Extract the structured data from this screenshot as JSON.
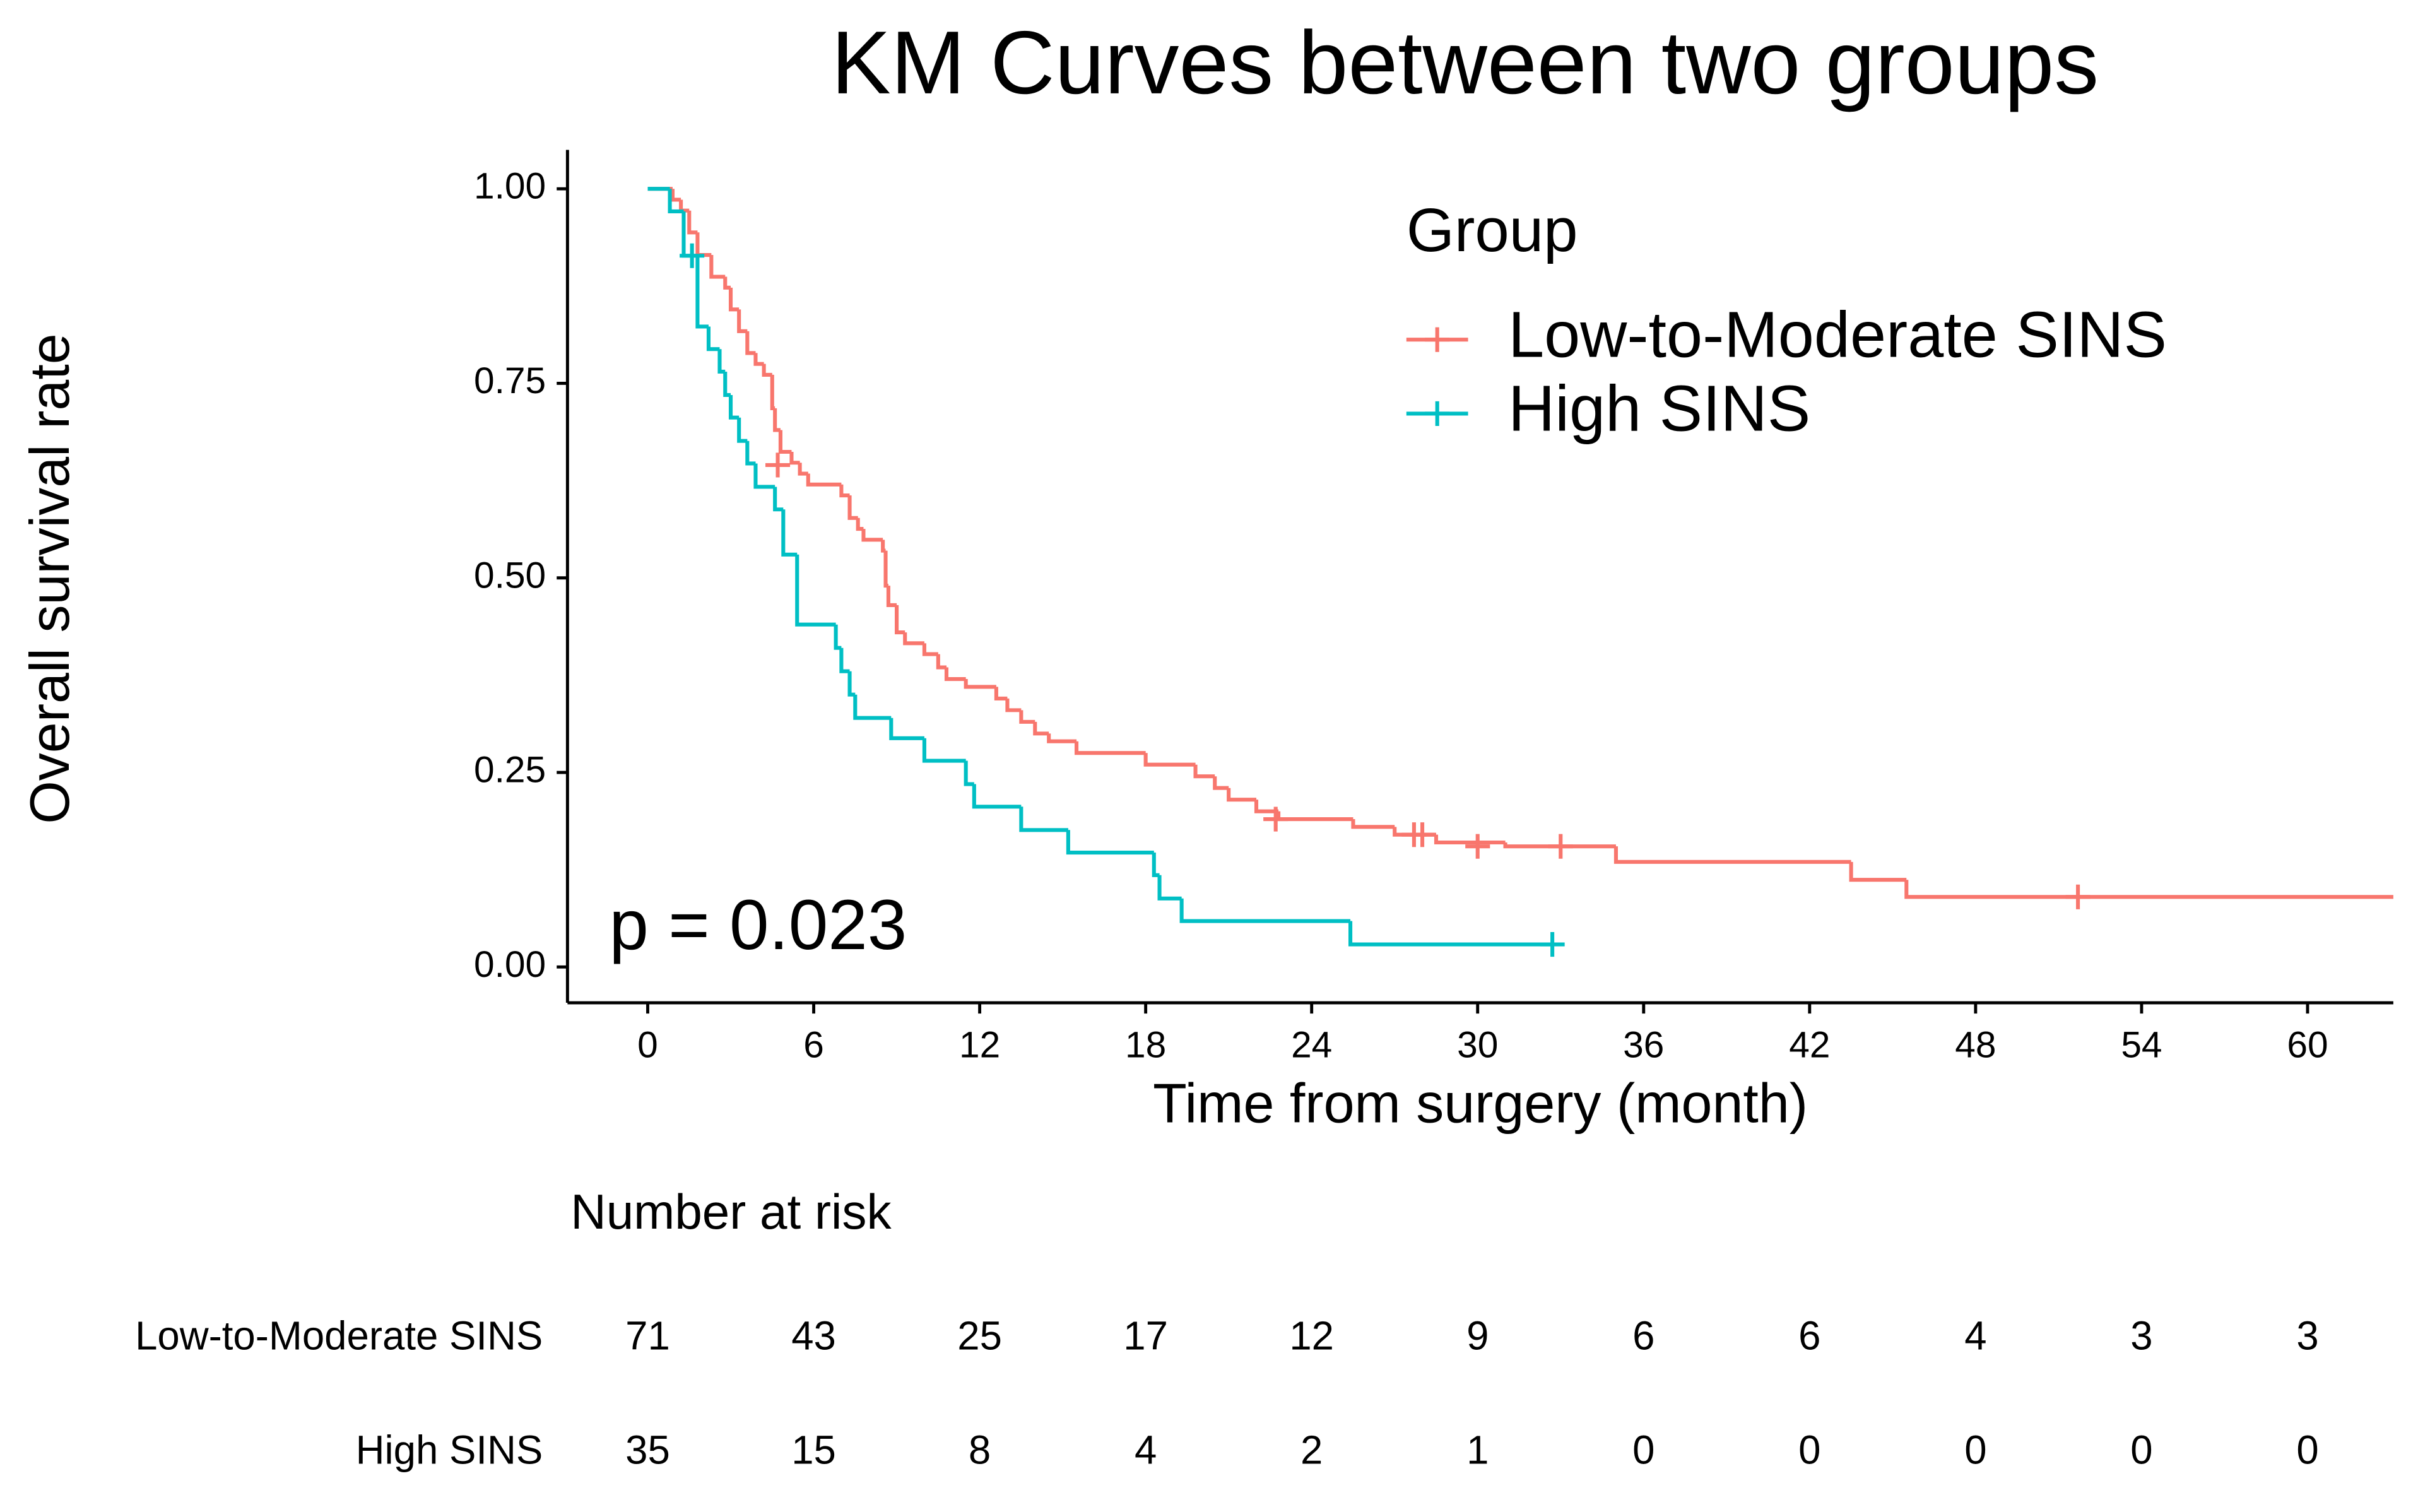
{
  "chart_data": {
    "type": "km",
    "title": "KM Curves between two groups",
    "x_label": "Time from surgery (month)",
    "y_label": "Overall survival rate",
    "legend_title": "Group",
    "annotation": "p = 0.023",
    "xlim": [
      -2.9,
      63.1
    ],
    "ylim": [
      -0.046,
      1.05
    ],
    "xticks": [
      0,
      6,
      12,
      18,
      24,
      30,
      36,
      42,
      48,
      54,
      60
    ],
    "yticks": [
      {
        "value": 0,
        "label": "0.00"
      },
      {
        "value": 0.25,
        "label": "0.25"
      },
      {
        "value": 0.5,
        "label": "0.50"
      },
      {
        "value": 0.75,
        "label": "0.75"
      },
      {
        "value": 1,
        "label": "1.00"
      }
    ],
    "series": [
      {
        "name": "Low-to-Moderate SINS",
        "color": "#f8766d",
        "x": [
          0,
          0.9,
          1.2,
          1.5,
          1.8,
          2.3,
          2.8,
          3.0,
          3.3,
          3.6,
          3.9,
          4.2,
          4.5,
          4.6,
          4.8,
          5.2,
          5.5,
          5.8,
          7.0,
          7.3,
          7.6,
          7.8,
          8.5,
          8.6,
          8.7,
          9.0,
          9.3,
          10.0,
          10.5,
          10.8,
          11.5,
          12.6,
          13.0,
          13.5,
          14.0,
          14.5,
          15.5,
          18.0,
          19.8,
          20.5,
          21.0,
          22.0,
          22.8,
          25.5,
          27.0,
          28.5,
          31.0,
          35.0,
          43.5,
          45.5,
          64
        ],
        "values": [
          1.0,
          0.986,
          0.972,
          0.944,
          0.915,
          0.887,
          0.873,
          0.845,
          0.817,
          0.789,
          0.775,
          0.761,
          0.718,
          0.69,
          0.662,
          0.648,
          0.634,
          0.62,
          0.606,
          0.577,
          0.563,
          0.549,
          0.535,
          0.49,
          0.465,
          0.43,
          0.416,
          0.402,
          0.385,
          0.37,
          0.36,
          0.345,
          0.33,
          0.315,
          0.3,
          0.29,
          0.275,
          0.26,
          0.245,
          0.23,
          0.215,
          0.2,
          0.19,
          0.18,
          0.17,
          0.16,
          0.155,
          0.135,
          0.112,
          0.09,
          0.09
        ],
        "censor_x": [
          4.7,
          22.7,
          27.7,
          28.0,
          30.0,
          33.0,
          51.7
        ],
        "censor_values": [
          0.645,
          0.19,
          0.17,
          0.17,
          0.155,
          0.155,
          0.09
        ]
      },
      {
        "name": "High SINS",
        "color": "#00bfc4",
        "x": [
          0,
          0.8,
          1.3,
          1.8,
          2.2,
          2.6,
          2.8,
          3.0,
          3.3,
          3.6,
          3.9,
          4.6,
          4.9,
          5.4,
          6.8,
          7.0,
          7.3,
          7.5,
          8.8,
          10.0,
          11.5,
          11.8,
          13.5,
          15.2,
          18.3,
          18.5,
          19.3,
          25.4,
          32.7
        ],
        "values": [
          1.0,
          0.971,
          0.914,
          0.823,
          0.794,
          0.765,
          0.735,
          0.706,
          0.676,
          0.647,
          0.617,
          0.588,
          0.53,
          0.44,
          0.41,
          0.38,
          0.35,
          0.32,
          0.294,
          0.265,
          0.235,
          0.206,
          0.176,
          0.147,
          0.118,
          0.088,
          0.059,
          0.029,
          0.029
        ],
        "censor_x": [
          1.6,
          32.7
        ],
        "censor_values": [
          0.914,
          0.029
        ]
      }
    ],
    "risk_table": {
      "title": "Number at risk",
      "series": [
        {
          "name": "Low-to-Moderate SINS",
          "color": "#f8766d",
          "values": [
            71,
            43,
            25,
            17,
            12,
            9,
            6,
            6,
            4,
            3,
            3
          ]
        },
        {
          "name": "High SINS",
          "color": "#00bfc4",
          "values": [
            35,
            15,
            8,
            4,
            2,
            1,
            0,
            0,
            0,
            0,
            0
          ]
        }
      ]
    }
  }
}
